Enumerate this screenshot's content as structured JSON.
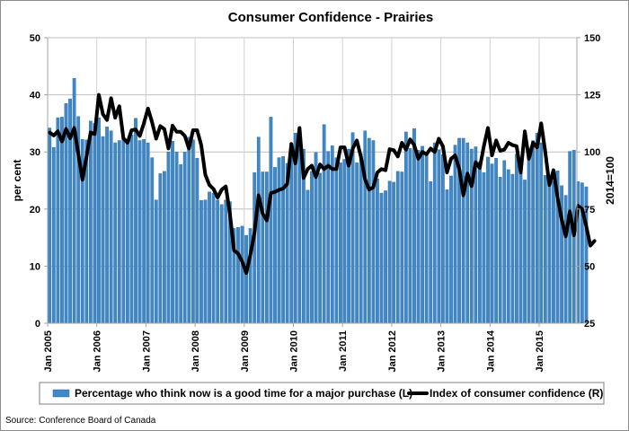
{
  "chart_data": {
    "type": "bar+line",
    "title": "Consumer Confidence - Prairies",
    "ylabel_left": "per cent",
    "ylabel_right": "2014=100",
    "ylim_left": [
      0,
      50
    ],
    "ylim_right": [
      25,
      150
    ],
    "yticks_left": [
      "0",
      "10",
      "20",
      "30",
      "40",
      "50"
    ],
    "yticks_right": [
      "25",
      "50",
      "75",
      "100",
      "125",
      "150"
    ],
    "xtick_labels": [
      "Jan 2005",
      "Jan 2006",
      "Jan 2007",
      "Jan 2008",
      "Jan 2009",
      "Jan 2010",
      "Jan 2011",
      "Jan 2012",
      "Jan 2013",
      "Jan 2014",
      "Jan 2015"
    ],
    "x_start": "Jan 2005",
    "x_frequency": "monthly",
    "grid": true,
    "legend_position": "bottom",
    "source": "Source: Conference Board of Canada",
    "series": [
      {
        "name": "Percentage who think now is a good time for a major purchase (L)",
        "axis": "left",
        "type": "bar",
        "color": "#3f87c6",
        "values": [
          34.2,
          30.8,
          36.0,
          36.1,
          38.5,
          39.3,
          42.9,
          36.2,
          32.2,
          32.1,
          35.4,
          35.0,
          36.0,
          32.7,
          34.4,
          33.7,
          31.6,
          32.0,
          32.3,
          31.9,
          33.0,
          35.9,
          32.0,
          32.2,
          31.6,
          29.0,
          21.6,
          26.2,
          26.6,
          30.0,
          31.9,
          30.0,
          27.8,
          30.0,
          32.6,
          32.1,
          28.9,
          21.5,
          21.6,
          23.0,
          22.8,
          21.6,
          20.8,
          21.6,
          21.3,
          16.6,
          16.8,
          17.0,
          15.4,
          16.6,
          26.4,
          32.6,
          26.5,
          26.5,
          36.1,
          27.3,
          29.0,
          29.2,
          28.0,
          30.8,
          33.3,
          30.6,
          30.5,
          23.3,
          26.6,
          29.9,
          26.3,
          34.8,
          30.1,
          31.1,
          29.0,
          28.1,
          28.7,
          30.5,
          33.4,
          28.1,
          29.7,
          33.7,
          32.4,
          32.0,
          25.3,
          22.8,
          23.2,
          24.9,
          24.7,
          26.6,
          26.5,
          33.5,
          30.6,
          34.1,
          30.3,
          31.0,
          29.5,
          24.8,
          31.6,
          30.4,
          29.5,
          23.4,
          25.8,
          31.2,
          32.4,
          32.4,
          31.6,
          30.5,
          30.9,
          28.3,
          26.4,
          29.1,
          27.9,
          28.9,
          25.6,
          28.5,
          26.9,
          26.1,
          29.6,
          28.8,
          25.1,
          30.7,
          32.0,
          33.3,
          31.6,
          25.9,
          24.6,
          24.9,
          26.7,
          24.1,
          22.4,
          30.1,
          30.3,
          24.8,
          24.6,
          23.9
        ]
      },
      {
        "name": "Index of consumer confidence (R)",
        "axis": "right",
        "type": "line",
        "color": "#000000",
        "values": [
          108.5,
          107.2,
          109.0,
          104.6,
          110.1,
          106.0,
          110.5,
          99.0,
          87.8,
          98.0,
          108.5,
          107.8,
          125.0,
          116.5,
          114.0,
          123.5,
          115.0,
          120.0,
          106.0,
          104.0,
          109.5,
          109.8,
          107.0,
          112.5,
          119.0,
          113.0,
          105.8,
          111.3,
          110.0,
          101.5,
          111.5,
          108.8,
          108.8,
          107.0,
          101.5,
          109.5,
          109.5,
          103.0,
          90.0,
          85.5,
          83.8,
          80.0,
          83.5,
          84.9,
          73.0,
          56.9,
          55.5,
          52.0,
          47.0,
          55.0,
          64.5,
          81.0,
          73.0,
          70.0,
          82.0,
          82.5,
          83.4,
          84.0,
          86.0,
          103.5,
          95.0,
          110.5,
          88.6,
          92.5,
          94.0,
          89.0,
          94.5,
          92.5,
          94.0,
          92.5,
          92.5,
          102.0,
          102.0,
          94.0,
          101.5,
          105.0,
          97.8,
          88.0,
          83.5,
          84.5,
          91.0,
          92.5,
          92.0,
          101.2,
          100.8,
          98.0,
          104.0,
          101.0,
          105.5,
          103.0,
          97.0,
          100.0,
          99.0,
          101.5,
          100.0,
          105.8,
          102.5,
          91.0,
          97.0,
          98.5,
          92.5,
          81.0,
          90.5,
          85.0,
          95.5,
          93.0,
          102.5,
          110.5,
          98.5,
          105.0,
          100.5,
          101.0,
          104.0,
          103.0,
          102.5,
          91.0,
          109.0,
          97.0,
          104.0,
          102.0,
          112.5,
          100.0,
          85.5,
          92.0,
          80.0,
          70.5,
          63.0,
          74.0,
          63.5,
          76.5,
          75.0,
          67.5,
          59.0,
          61.0
        ]
      }
    ]
  },
  "legend": {
    "bar_label": "Percentage who think now is a good time for a major purchase (L)",
    "line_label": "Index of consumer confidence (R)"
  }
}
